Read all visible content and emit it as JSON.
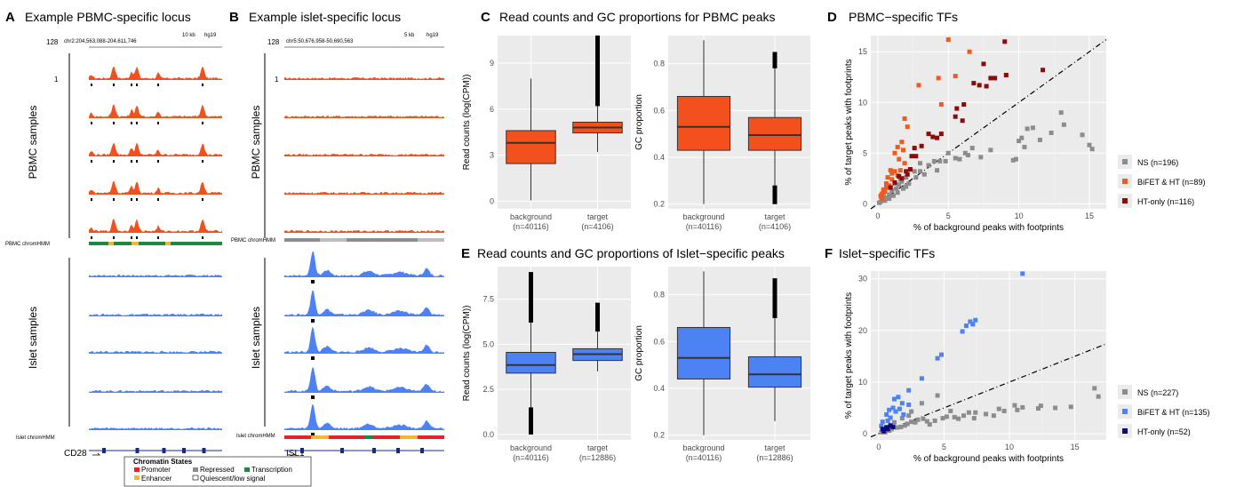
{
  "panels": {
    "A": {
      "letter": "A",
      "title": "Example PBMC-specific locus",
      "coord": "chr2:204,563,088-204,611,746",
      "scale_hi": "128",
      "scale_lo": "1",
      "scale_bar": "10 kb",
      "genome": "hg19",
      "gene": "CD28",
      "pbmc_label": "PBMC samples",
      "islet_label": "Islet samples",
      "pbmc_hmm": "PBMC chromHMM",
      "islet_hmm": "Islet chromHMM"
    },
    "B": {
      "letter": "B",
      "title": "Example islet-specific locus",
      "coord": "chr5:50,676,958-50,690,563",
      "scale_hi": "128",
      "scale_lo": "1",
      "scale_bar": "5 kb",
      "genome": "hg19",
      "gene": "ISL1",
      "pbmc_label": "PBMC samples",
      "islet_label": "Islet samples",
      "pbmc_hmm": "PBMC chromHMM",
      "islet_hmm": "Islet chromHMM"
    },
    "C": {
      "letter": "C",
      "title": "Read counts and GC proportions for PBMC peaks"
    },
    "D": {
      "letter": "D",
      "title": "PBMC−specific TFs"
    },
    "E": {
      "letter": "E",
      "title": "Read counts and GC proportions of Islet−specific peaks"
    },
    "F": {
      "letter": "F",
      "title": "Islet−specific TFs"
    }
  },
  "chromatin_legend": {
    "title": "Chromatin States",
    "items": [
      {
        "label": "Promoter",
        "color": "#e8202a"
      },
      {
        "label": "Enhancer",
        "color": "#f5b731"
      },
      {
        "label": "Repressed",
        "color": "#8c8c8c"
      },
      {
        "label": "Quiescent/low signal",
        "color": "#ffffff"
      },
      {
        "label": "Transcription",
        "color": "#1a8a3c"
      }
    ]
  },
  "colors": {
    "pbmc": "#f2501c",
    "islet": "#4d82f5",
    "ns": "#8c8c8c",
    "bifet_pbmc": "#f25a1c",
    "ht_pbmc": "#8b0a0a",
    "bifet_islet": "#4d82f5",
    "ht_islet": "#0a0a80",
    "panel_bg": "#ebebeb"
  },
  "chart_data": [
    {
      "id": "C1",
      "type": "box",
      "xlabel": "",
      "ylabel": "Read counts (log(CPM))",
      "ylim": [
        -0.5,
        10.8
      ],
      "yticks": [
        0,
        3,
        6,
        9
      ],
      "categories": [
        "background\n(n=40116)",
        "target\n(n=4106)"
      ],
      "boxes": [
        {
          "min": 0.05,
          "q1": 2.45,
          "median": 3.8,
          "q3": 4.6,
          "max": 8.0
        },
        {
          "min": 3.2,
          "q1": 4.45,
          "median": 4.8,
          "q3": 5.15,
          "max": 6.2,
          "outliers_to": 10.8
        }
      ]
    },
    {
      "id": "C2",
      "type": "box",
      "xlabel": "",
      "ylabel": "GC proportion",
      "ylim": [
        0.18,
        0.92
      ],
      "yticks": [
        0.2,
        0.4,
        0.6,
        0.8
      ],
      "categories": [
        "background\n(n=40116)",
        "target\n(n=4106)"
      ],
      "boxes": [
        {
          "min": 0.2,
          "q1": 0.43,
          "median": 0.53,
          "q3": 0.66,
          "max": 0.9
        },
        {
          "min": 0.28,
          "q1": 0.43,
          "median": 0.495,
          "q3": 0.57,
          "max": 0.78,
          "outliers_to": 0.85,
          "outliers_low": 0.2
        }
      ]
    },
    {
      "id": "E1",
      "type": "box",
      "xlabel": "",
      "ylabel": "Read counts (log(CPM))",
      "ylim": [
        -0.3,
        9.3
      ],
      "yticks": [
        0.0,
        2.5,
        5.0,
        7.5
      ],
      "yticklabels": [
        "0.0",
        "2.5",
        "5.0",
        "7.5"
      ],
      "categories": [
        "background\n(n=40116)",
        "target\n(n=12886)"
      ],
      "boxes": [
        {
          "min": 1.5,
          "q1": 3.4,
          "median": 3.85,
          "q3": 4.55,
          "max": 6.2,
          "outliers_to": 9.0,
          "outliers_low": 0.0
        },
        {
          "min": 3.5,
          "q1": 4.1,
          "median": 4.45,
          "q3": 4.75,
          "max": 5.7,
          "outliers_to": 7.3
        }
      ]
    },
    {
      "id": "E2",
      "type": "box",
      "xlabel": "",
      "ylabel": "GC proportion",
      "ylim": [
        0.18,
        0.92
      ],
      "yticks": [
        0.2,
        0.4,
        0.6,
        0.8
      ],
      "categories": [
        "background\n(n=40116)",
        "target\n(n=12886)"
      ],
      "boxes": [
        {
          "min": 0.2,
          "q1": 0.44,
          "median": 0.53,
          "q3": 0.66,
          "max": 0.9
        },
        {
          "min": 0.26,
          "q1": 0.405,
          "median": 0.46,
          "q3": 0.535,
          "max": 0.7,
          "outliers_to": 0.87
        }
      ]
    },
    {
      "id": "D",
      "type": "scatter",
      "title": "PBMC−specific TFs",
      "xlabel": "% of background peaks with footprints",
      "ylabel": "% of target peaks with footprints",
      "xlim": [
        -0.5,
        16.2
      ],
      "ylim": [
        -0.5,
        16.6
      ],
      "xticks": [
        0,
        5,
        10,
        15
      ],
      "yticks": [
        0,
        5,
        10,
        15
      ],
      "series": [
        {
          "name": "NS (n=196)",
          "color": "#8c8c8c",
          "points": [
            [
              13,
              9
            ],
            [
              13.2,
              7.8
            ],
            [
              12.3,
              7
            ],
            [
              14.5,
              6.8
            ],
            [
              15,
              5.8
            ],
            [
              15.2,
              5.4
            ],
            [
              9.8,
              4.4
            ],
            [
              9.6,
              4.3
            ],
            [
              10,
              6.2
            ],
            [
              10.2,
              6.5
            ],
            [
              10.6,
              7.4
            ],
            [
              11,
              7.5
            ],
            [
              11.5,
              6.3
            ],
            [
              10.4,
              5.6
            ],
            [
              8,
              5.3
            ],
            [
              6.7,
              5.5
            ],
            [
              6.2,
              5
            ],
            [
              5.5,
              4.5
            ],
            [
              4.8,
              4.2
            ],
            [
              5,
              5
            ],
            [
              4,
              4.2
            ],
            [
              4.4,
              4.2
            ],
            [
              3.6,
              3.8
            ],
            [
              3,
              4
            ],
            [
              3,
              3.2
            ],
            [
              2.6,
              3.2
            ],
            [
              2.3,
              3.4
            ],
            [
              2,
              2.6
            ],
            [
              1.7,
              2.2
            ],
            [
              1.5,
              1.9
            ],
            [
              1.3,
              1.5
            ],
            [
              1,
              1.3
            ],
            [
              0.8,
              0.9
            ],
            [
              0.6,
              0.6
            ],
            [
              0.4,
              0.4
            ],
            [
              0.2,
              0.2
            ],
            [
              0.2,
              0.7
            ],
            [
              0.4,
              0.9
            ],
            [
              0.5,
              0.3
            ],
            [
              0.8,
              0.5
            ],
            [
              1.1,
              0.8
            ],
            [
              1.4,
              1.1
            ],
            [
              1.8,
              1.5
            ],
            [
              2.2,
              2
            ],
            [
              2.7,
              2.6
            ],
            [
              3.3,
              2.9
            ],
            [
              4.2,
              3.3
            ],
            [
              5.8,
              4.4
            ],
            [
              6.4,
              4.8
            ],
            [
              7.3,
              4.6
            ],
            [
              1.2,
              2.0
            ],
            [
              1.6,
              2.4
            ],
            [
              2,
              1.7
            ],
            [
              0.9,
              1.6
            ],
            [
              0.1,
              0.1
            ]
          ]
        },
        {
          "name": "BiFET & HT (n=89)",
          "color": "#f25a1c",
          "points": [
            [
              5,
              16.2
            ],
            [
              6.5,
              15
            ],
            [
              5.5,
              12.6
            ],
            [
              4.3,
              12.4
            ],
            [
              2.9,
              11.7
            ],
            [
              4.5,
              9.8
            ],
            [
              1.9,
              8.4
            ],
            [
              2.1,
              7.6
            ],
            [
              1.7,
              6.1
            ],
            [
              1.4,
              5.6
            ],
            [
              1.2,
              5.0
            ],
            [
              1.8,
              5.3
            ],
            [
              1.5,
              4.4
            ],
            [
              1.9,
              4
            ],
            [
              0.9,
              3.3
            ],
            [
              1.2,
              3.2
            ],
            [
              0.7,
              2.6
            ],
            [
              0.6,
              2.0
            ],
            [
              1,
              2.4
            ],
            [
              0.4,
              1.4
            ],
            [
              0.3,
              1
            ],
            [
              0.5,
              1.2
            ],
            [
              0.2,
              0.8
            ],
            [
              0.8,
              1.8
            ],
            [
              1.4,
              2.8
            ],
            [
              1.6,
              3.3
            ],
            [
              1,
              3.0
            ],
            [
              0.6,
              1.6
            ],
            [
              0.3,
              0.5
            ]
          ]
        },
        {
          "name": "HT-only (n=116)",
          "color": "#8b0a0a",
          "points": [
            [
              9,
              16
            ],
            [
              7.5,
              13.8
            ],
            [
              8,
              12.4
            ],
            [
              7.7,
              11.6
            ],
            [
              8.3,
              12.4
            ],
            [
              6.8,
              11.9
            ],
            [
              7.2,
              11.7
            ],
            [
              11.7,
              13.2
            ],
            [
              9.1,
              12.7
            ],
            [
              6.1,
              9.8
            ],
            [
              5.6,
              9.4
            ],
            [
              5.5,
              8.6
            ],
            [
              6,
              8.2
            ],
            [
              4.5,
              6.9
            ],
            [
              4.2,
              6.5
            ],
            [
              3.6,
              6.9
            ],
            [
              3.9,
              6.6
            ],
            [
              3.1,
              5.7
            ],
            [
              2.6,
              5.5
            ],
            [
              2.4,
              4.7
            ],
            [
              2.7,
              4.7
            ],
            [
              2.3,
              3.4
            ],
            [
              2,
              3.2
            ],
            [
              2.1,
              2.9
            ],
            [
              1.5,
              2.7
            ],
            [
              1.7,
              2.5
            ],
            [
              1.2,
              2.1
            ],
            [
              0.9,
              1.6
            ]
          ]
        }
      ],
      "reference_line": "dot-dash"
    },
    {
      "id": "F",
      "type": "scatter",
      "title": "Islet−specific TFs",
      "xlabel": "% of background peaks with footprints",
      "ylabel": "% of target peaks with footprints",
      "xlim": [
        -0.6,
        17.4
      ],
      "ylim": [
        -1.2,
        31.5
      ],
      "xticks": [
        0,
        5,
        10,
        15
      ],
      "yticks": [
        0,
        10,
        20,
        30
      ],
      "series": [
        {
          "name": "NS (n=227)",
          "color": "#8c8c8c",
          "points": [
            [
              16.5,
              8.8
            ],
            [
              16.8,
              7.2
            ],
            [
              14.7,
              5.2
            ],
            [
              13.5,
              5
            ],
            [
              12.2,
              4.9
            ],
            [
              12.4,
              5.4
            ],
            [
              11,
              5.1
            ],
            [
              10.6,
              4.6
            ],
            [
              10.4,
              5.5
            ],
            [
              9.6,
              4.4
            ],
            [
              9.2,
              4.8
            ],
            [
              8.2,
              3.8
            ],
            [
              7.4,
              4.1
            ],
            [
              6.5,
              3.5
            ],
            [
              6.9,
              4.1
            ],
            [
              5.8,
              3.2
            ],
            [
              5.2,
              3.3
            ],
            [
              4.9,
              3
            ],
            [
              4.3,
              2.5
            ],
            [
              3.7,
              2.4
            ],
            [
              3.4,
              2.9
            ],
            [
              2.8,
              2.2
            ],
            [
              2.5,
              2.3
            ],
            [
              2.2,
              1.9
            ],
            [
              2,
              1.6
            ],
            [
              1.7,
              1.3
            ],
            [
              1.4,
              1.2
            ],
            [
              1,
              0.9
            ],
            [
              0.8,
              0.6
            ],
            [
              0.5,
              0.3
            ],
            [
              0.2,
              0.3
            ],
            [
              5.5,
              4.4
            ],
            [
              4.5,
              7.4
            ],
            [
              3.3,
              5.9
            ],
            [
              2.5,
              4.3
            ],
            [
              2.3,
              3.5
            ],
            [
              1.8,
              3
            ],
            [
              1.2,
              2.2
            ],
            [
              0.6,
              1.3
            ],
            [
              7.3,
              3
            ],
            [
              8.8,
              3.5
            ],
            [
              6.1,
              2.9
            ],
            [
              3.9,
              1.8
            ],
            [
              3,
              2.7
            ]
          ]
        },
        {
          "name": "BiFET & HT (n=135)",
          "color": "#4d82f5",
          "points": [
            [
              11,
              31
            ],
            [
              7.4,
              22
            ],
            [
              7.2,
              21.2
            ],
            [
              7.0,
              21.7
            ],
            [
              6.7,
              20.9
            ],
            [
              6.4,
              19.8
            ],
            [
              4.8,
              15.3
            ],
            [
              4.5,
              14.6
            ],
            [
              3.3,
              10.7
            ],
            [
              2.3,
              8.4
            ],
            [
              1.5,
              7.1
            ],
            [
              1.2,
              6.7
            ],
            [
              1.8,
              5.9
            ],
            [
              2.3,
              5.6
            ],
            [
              1.1,
              5
            ],
            [
              0.8,
              4.6
            ],
            [
              1.3,
              4.3
            ],
            [
              0.6,
              3.7
            ],
            [
              0.3,
              2.3
            ],
            [
              0.7,
              2.5
            ],
            [
              0.9,
              3.1
            ],
            [
              0.2,
              1.5
            ],
            [
              1.6,
              4.8
            ],
            [
              1.9,
              3.7
            ]
          ]
        },
        {
          "name": "HT-only (n=52)",
          "color": "#0a0a80",
          "points": [
            [
              0.3,
              0.9
            ],
            [
              0.6,
              1.2
            ],
            [
              0.9,
              1.6
            ],
            [
              1.1,
              1.3
            ],
            [
              0.4,
              0.5
            ],
            [
              0.7,
              0.9
            ]
          ]
        }
      ],
      "reference_line": "dot-dash"
    }
  ]
}
